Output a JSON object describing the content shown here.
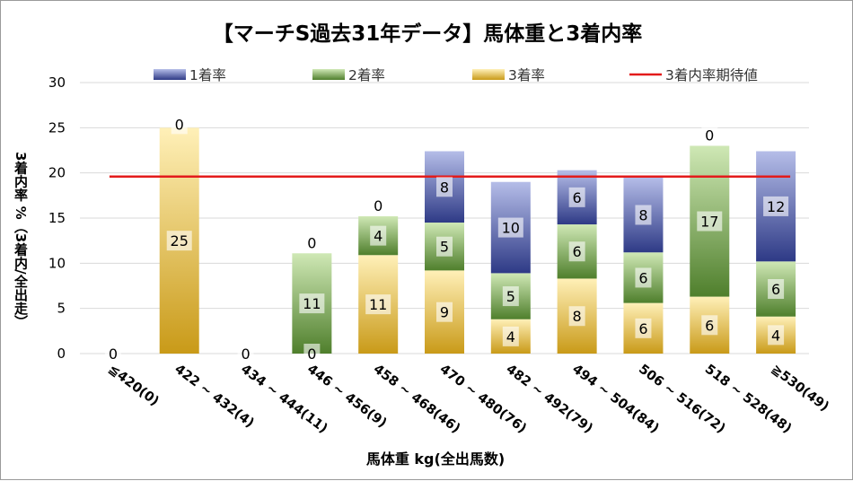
{
  "chart_data": {
    "type": "bar",
    "stacked": true,
    "title": "【マーチS過去31年データ】馬体重と3着内率",
    "xlabel": "馬体重 kg(全出馬数)",
    "ylabel": "3着内率 %（3着内/全出走）",
    "ylim": [
      0,
      30
    ],
    "yticks": [
      "0",
      "5",
      "10",
      "15",
      "20",
      "25",
      "30"
    ],
    "ytick_values": [
      0,
      5,
      10,
      15,
      20,
      25,
      30
    ],
    "grid": true,
    "legend_position": "top",
    "categories": [
      "≦420(0)",
      "422 ~ 432(4)",
      "434 ~ 444(11)",
      "446 ~ 456(9)",
      "458 ~ 468(46)",
      "470 ~ 480(76)",
      "482 ~ 492(79)",
      "494 ~ 504(84)",
      "506 ~ 516(72)",
      "518 ~ 528(48)",
      "≧530(49)"
    ],
    "series": [
      {
        "name": "3着率",
        "color": "#c99a18",
        "values": [
          0,
          25,
          0,
          0,
          10.9,
          9.2,
          3.8,
          8.3,
          5.6,
          6.3,
          4.1
        ],
        "labels": [
          "0",
          "25",
          "0",
          "0",
          "11",
          "9",
          "4",
          "8",
          "6",
          "6",
          "4"
        ]
      },
      {
        "name": "2着率",
        "color": "#4f7f2c",
        "values": [
          0,
          0,
          0,
          11.1,
          4.3,
          5.3,
          5.1,
          6.0,
          5.6,
          16.7,
          6.1
        ],
        "labels": [
          "",
          "",
          "",
          "11",
          "4",
          "5",
          "5",
          "6",
          "6",
          "17",
          "6"
        ]
      },
      {
        "name": "1着率",
        "color": "#2e3a86",
        "values": [
          0,
          0,
          0,
          0,
          0,
          7.9,
          10.1,
          6.0,
          8.3,
          0,
          12.2
        ],
        "labels": [
          "",
          "0",
          "",
          "0",
          "0",
          "8",
          "10",
          "6",
          "8",
          "0",
          "12"
        ]
      }
    ],
    "reference_line": {
      "name": "3着内率期待値",
      "value": 19.6,
      "color": "#e31b1b"
    },
    "legend": [
      {
        "name": "1着率",
        "color": "#2e3a86",
        "kind": "bar"
      },
      {
        "name": "2着率",
        "color": "#4f7f2c",
        "kind": "bar"
      },
      {
        "name": "3着率",
        "color": "#c99a18",
        "kind": "bar"
      },
      {
        "name": "3着内率期待値",
        "color": "#e31b1b",
        "kind": "line"
      }
    ]
  }
}
